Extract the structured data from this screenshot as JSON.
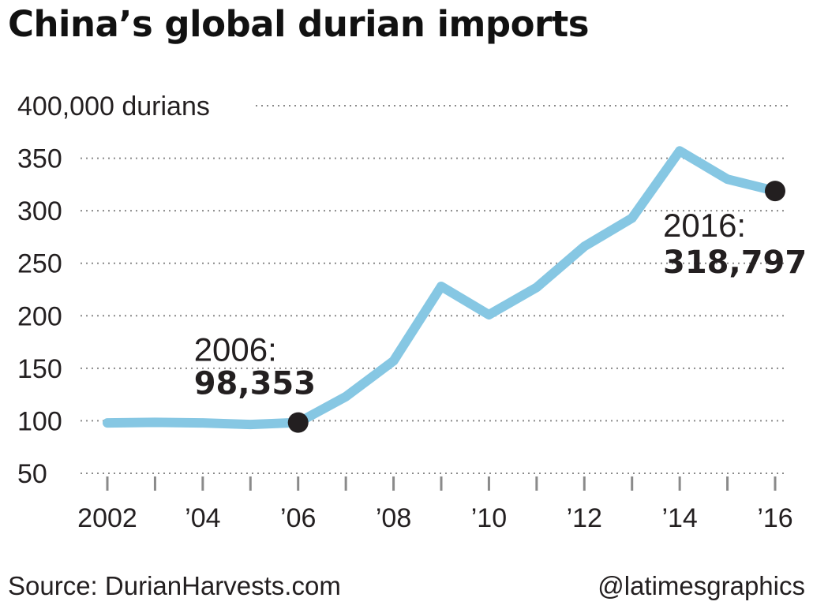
{
  "header": {
    "title": "China’s global durian imports"
  },
  "footer": {
    "source": "Source: DurianHarvests.com",
    "credit": "@latimesgraphics"
  },
  "chart_data": {
    "type": "line",
    "title": "China’s global durian imports",
    "ylabel": "durians",
    "ylim": [
      50,
      400
    ],
    "y_ticks": [
      50,
      100,
      150,
      200,
      250,
      300,
      350,
      400
    ],
    "y_tick_labels": [
      "50",
      "100",
      "150",
      "200",
      "250",
      "300",
      "350",
      "400,000 durians"
    ],
    "xlim": [
      2002,
      2016
    ],
    "x_ticks": [
      2002,
      2003,
      2004,
      2005,
      2006,
      2007,
      2008,
      2009,
      2010,
      2011,
      2012,
      2013,
      2014,
      2015,
      2016
    ],
    "x_tick_labels": [
      {
        "x": 2002,
        "label": "2002"
      },
      {
        "x": 2004,
        "label": "’04"
      },
      {
        "x": 2006,
        "label": "’06"
      },
      {
        "x": 2008,
        "label": "’08"
      },
      {
        "x": 2010,
        "label": "’10"
      },
      {
        "x": 2012,
        "label": "’12"
      },
      {
        "x": 2014,
        "label": "’14"
      },
      {
        "x": 2016,
        "label": "’16"
      }
    ],
    "grid": "horizontal dotted",
    "series": [
      {
        "color": "#86c7e3",
        "x": [
          2002,
          2003,
          2004,
          2005,
          2006,
          2007,
          2008,
          2009,
          2010,
          2011,
          2012,
          2013,
          2014,
          2015,
          2016
        ],
        "y": [
          98,
          98.5,
          98,
          96.5,
          98.353,
          123,
          157,
          228,
          201,
          227,
          266,
          293,
          357,
          330,
          318.797
        ]
      }
    ],
    "annotations": [
      {
        "x": 2006,
        "y": 98.353,
        "year": "2006:",
        "value": "98,353"
      },
      {
        "x": 2016,
        "y": 318.797,
        "year": "2016:",
        "value": "318,797"
      }
    ]
  }
}
